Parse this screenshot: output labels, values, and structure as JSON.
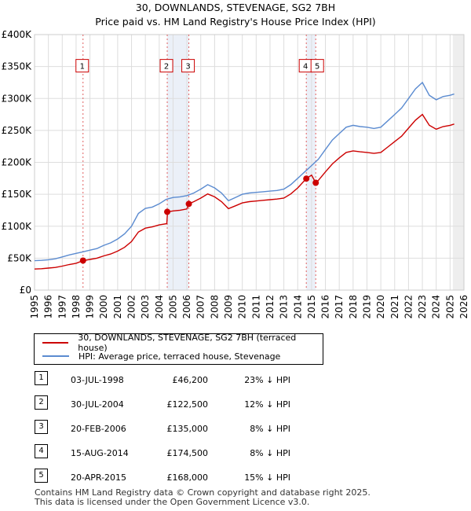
{
  "title": "30, DOWNLANDS, STEVENAGE, SG2 7BH",
  "subtitle": "Price paid vs. HM Land Registry's House Price Index (HPI)",
  "legend": {
    "property": "30, DOWNLANDS, STEVENAGE, SG2 7BH (terraced house)",
    "hpi": "HPI: Average price, terraced house, Stevenage"
  },
  "colors": {
    "property": "#cc0000",
    "hpi": "#5b8bd0",
    "shade": "#dde6f4",
    "grid": "#dddddd"
  },
  "transactions": [
    {
      "num": "1",
      "date": "03-JUL-1998",
      "price": "£46,200",
      "hpi": "23% ↓ HPI"
    },
    {
      "num": "2",
      "date": "30-JUL-2004",
      "price": "£122,500",
      "hpi": "12% ↓ HPI"
    },
    {
      "num": "3",
      "date": "20-FEB-2006",
      "price": "£135,000",
      "hpi": "8% ↓ HPI"
    },
    {
      "num": "4",
      "date": "15-AUG-2014",
      "price": "£174,500",
      "hpi": "8% ↓ HPI"
    },
    {
      "num": "5",
      "date": "20-APR-2015",
      "price": "£168,000",
      "hpi": "15% ↓ HPI"
    }
  ],
  "footer": {
    "line1": "Contains HM Land Registry data © Crown copyright and database right 2025.",
    "line2": "This data is licensed under the Open Government Licence v3.0."
  },
  "chart_data": {
    "type": "line",
    "title": "30, DOWNLANDS, STEVENAGE, SG2 7BH",
    "subtitle": "Price paid vs. HM Land Registry's House Price Index (HPI)",
    "xlim": [
      1995,
      2026
    ],
    "ylim": [
      0,
      400000
    ],
    "x_ticks": [
      1995,
      1996,
      1997,
      1998,
      1999,
      2000,
      2001,
      2002,
      2003,
      2004,
      2005,
      2006,
      2007,
      2008,
      2009,
      2010,
      2011,
      2012,
      2013,
      2014,
      2015,
      2016,
      2017,
      2018,
      2019,
      2020,
      2021,
      2022,
      2023,
      2024,
      2025,
      2026
    ],
    "y_ticks": [
      {
        "value": 0,
        "label": "£0"
      },
      {
        "value": 50000,
        "label": "£50K"
      },
      {
        "value": 100000,
        "label": "£100K"
      },
      {
        "value": 150000,
        "label": "£150K"
      },
      {
        "value": 200000,
        "label": "£200K"
      },
      {
        "value": 250000,
        "label": "£250K"
      },
      {
        "value": 300000,
        "label": "£300K"
      },
      {
        "value": 350000,
        "label": "£350K"
      },
      {
        "value": 400000,
        "label": "£400K"
      }
    ],
    "grid": true,
    "legend_position": "below-left",
    "future_shading_from": 2025.2,
    "series": [
      {
        "name": "HPI: Average price, terraced house, Stevenage",
        "x": [
          1995.0,
          1995.5,
          1996.0,
          1996.5,
          1997.0,
          1997.5,
          1998.0,
          1998.5,
          1999.0,
          1999.5,
          2000.0,
          2000.5,
          2001.0,
          2001.5,
          2002.0,
          2002.5,
          2003.0,
          2003.5,
          2004.0,
          2004.5,
          2005.0,
          2005.5,
          2006.0,
          2006.5,
          2007.0,
          2007.5,
          2008.0,
          2008.5,
          2009.0,
          2009.5,
          2010.0,
          2010.5,
          2011.0,
          2011.5,
          2012.0,
          2012.5,
          2013.0,
          2013.5,
          2014.0,
          2014.5,
          2015.0,
          2015.5,
          2016.0,
          2016.5,
          2017.0,
          2017.5,
          2018.0,
          2018.5,
          2019.0,
          2019.5,
          2020.0,
          2020.5,
          2021.0,
          2021.5,
          2022.0,
          2022.5,
          2023.0,
          2023.5,
          2024.0,
          2024.5,
          2025.0,
          2025.3
        ],
        "values": [
          46000,
          46500,
          47500,
          49000,
          52000,
          55000,
          57500,
          60000,
          62500,
          65000,
          70000,
          74000,
          80000,
          88000,
          100000,
          120000,
          128000,
          130000,
          135000,
          142000,
          145000,
          146000,
          148000,
          152000,
          158000,
          165000,
          160000,
          152000,
          140000,
          145000,
          150000,
          152000,
          153000,
          154000,
          155000,
          156000,
          158000,
          165000,
          175000,
          185000,
          195000,
          205000,
          220000,
          235000,
          245000,
          255000,
          258000,
          256000,
          255000,
          253000,
          255000,
          265000,
          275000,
          285000,
          300000,
          315000,
          325000,
          305000,
          298000,
          303000,
          305000,
          307000
        ]
      },
      {
        "name": "30, DOWNLANDS, STEVENAGE, SG2 7BH (terraced house)",
        "x": [
          1995.0,
          1995.5,
          1996.0,
          1996.5,
          1997.0,
          1997.5,
          1998.0,
          1998.5,
          1999.0,
          1999.5,
          2000.0,
          2000.5,
          2001.0,
          2001.5,
          2002.0,
          2002.5,
          2003.0,
          2003.5,
          2004.0,
          2004.55,
          2004.6,
          2005.0,
          2005.5,
          2006.0,
          2006.14,
          2006.5,
          2007.0,
          2007.5,
          2008.0,
          2008.5,
          2009.0,
          2009.5,
          2010.0,
          2010.5,
          2011.0,
          2011.5,
          2012.0,
          2012.5,
          2013.0,
          2013.5,
          2014.0,
          2014.62,
          2015.0,
          2015.3,
          2015.5,
          2016.0,
          2016.5,
          2017.0,
          2017.5,
          2018.0,
          2018.5,
          2019.0,
          2019.5,
          2020.0,
          2020.5,
          2021.0,
          2021.5,
          2022.0,
          2022.5,
          2023.0,
          2023.5,
          2024.0,
          2024.5,
          2025.0,
          2025.3
        ],
        "values": [
          33000,
          33500,
          34500,
          35500,
          37500,
          40000,
          42000,
          46200,
          48000,
          50000,
          53500,
          56500,
          61000,
          67000,
          76000,
          91000,
          97000,
          99000,
          102000,
          104000,
          122500,
          124000,
          125000,
          127000,
          135000,
          138500,
          144000,
          150500,
          146000,
          138500,
          127500,
          132000,
          136500,
          138500,
          139500,
          140500,
          141500,
          142500,
          144000,
          150500,
          160000,
          174500,
          180000,
          168000,
          172000,
          185000,
          197500,
          207000,
          215500,
          218000,
          216500,
          215500,
          214000,
          215500,
          224000,
          232500,
          241000,
          253500,
          266000,
          275000,
          258000,
          252000,
          256000,
          258000,
          260000
        ]
      }
    ],
    "sale_markers": [
      {
        "label": "1",
        "x": 1998.5,
        "price": 46200
      },
      {
        "label": "2",
        "x": 2004.58,
        "price": 122500
      },
      {
        "label": "3",
        "x": 2006.14,
        "price": 135000
      },
      {
        "label": "4",
        "x": 2014.62,
        "price": 174500
      },
      {
        "label": "5",
        "x": 2015.3,
        "price": 168000
      }
    ]
  }
}
